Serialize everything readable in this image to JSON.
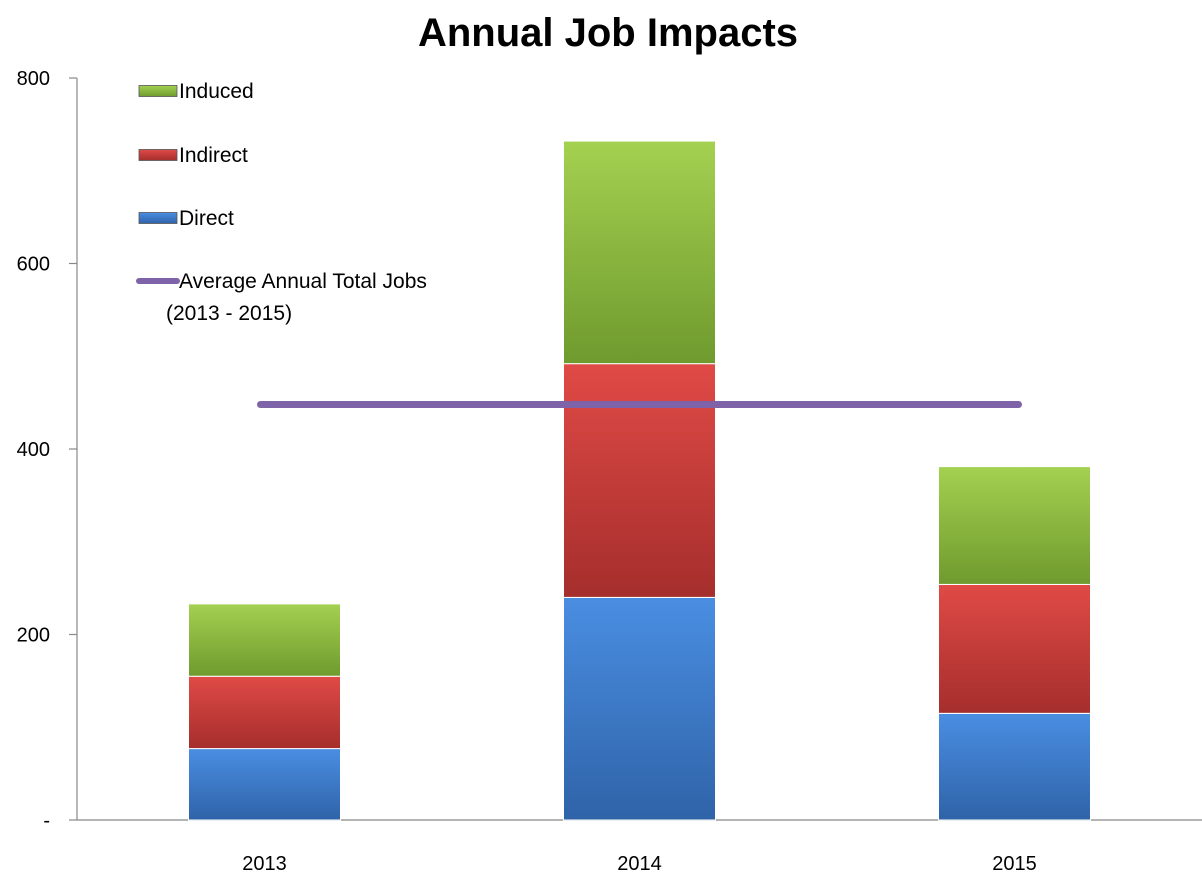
{
  "chart_data": {
    "type": "bar",
    "stacked": true,
    "title": "Annual Job Impacts",
    "xlabel": "",
    "ylabel": "",
    "categories": [
      "2013",
      "2014",
      "2015"
    ],
    "ylim": [
      0,
      800
    ],
    "yticks": [
      0,
      200,
      400,
      600,
      800
    ],
    "ytick_labels": [
      "-",
      "200",
      "400",
      "600",
      "800"
    ],
    "grid": false,
    "legend_position": "top-left",
    "series": [
      {
        "name": "Direct",
        "values": [
          77,
          240,
          115
        ],
        "color": "#3d7dd0"
      },
      {
        "name": "Indirect",
        "values": [
          78,
          252,
          139
        ],
        "color": "#cf3b38"
      },
      {
        "name": "Induced",
        "values": [
          78,
          240,
          127
        ],
        "color": "#8cb43c"
      }
    ],
    "line": {
      "name_lines": [
        "Average Annual Total Jobs",
        "(2013 - 2015)"
      ],
      "value": 448,
      "color": "#7f63a8"
    },
    "legend_order": [
      "Induced",
      "Indirect",
      "Direct"
    ]
  }
}
